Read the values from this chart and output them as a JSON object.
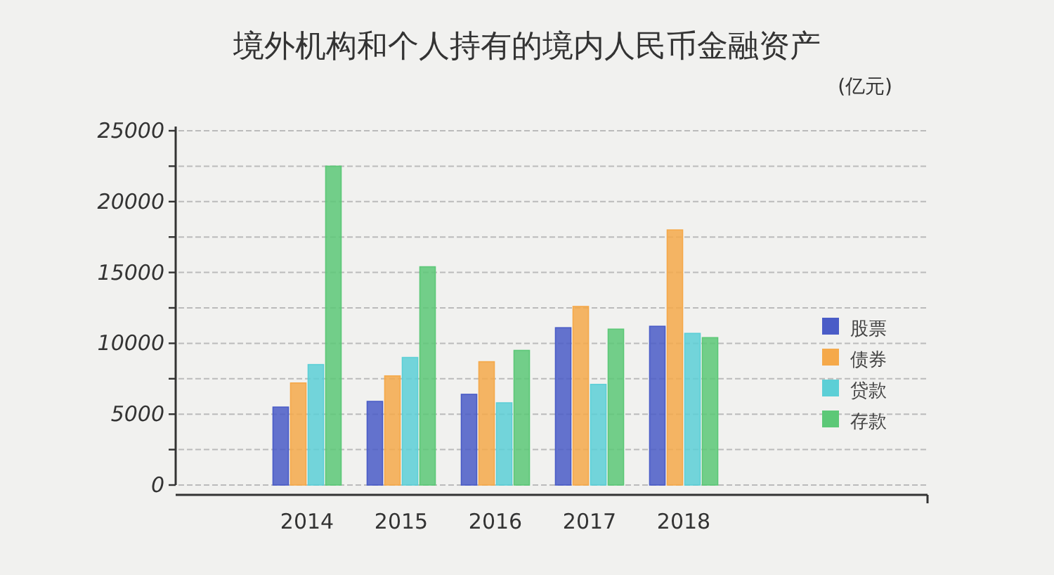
{
  "chart_data": {
    "type": "bar",
    "title": "境外机构和个人持有的境内人民币金融资产",
    "annotations": [
      "(亿元)"
    ],
    "categories": [
      "2014",
      "2015",
      "2016",
      "2017",
      "2018"
    ],
    "series": [
      {
        "name": "股票",
        "color": "#4a5cc7",
        "values": [
          5500,
          5900,
          6400,
          11100,
          11200
        ]
      },
      {
        "name": "债券",
        "color": "#f5a94a",
        "values": [
          7200,
          7700,
          8700,
          12600,
          18000
        ]
      },
      {
        "name": "贷款",
        "color": "#5ccfd6",
        "values": [
          8500,
          9000,
          5800,
          7100,
          10700
        ]
      },
      {
        "name": "存款",
        "color": "#5cc877",
        "values": [
          22500,
          15400,
          9500,
          11000,
          10400
        ]
      }
    ],
    "ylim": [
      0,
      25000
    ],
    "yticks": [
      0,
      {
        "value": 2500,
        "label": null
      },
      5000,
      {
        "value": 7500,
        "label": null
      },
      10000,
      {
        "value": 12500,
        "label": null
      },
      15000,
      {
        "value": 17500,
        "label": null
      },
      20000,
      {
        "value": 22500,
        "label": null
      },
      25000
    ],
    "grid": "y",
    "legend": "right"
  }
}
